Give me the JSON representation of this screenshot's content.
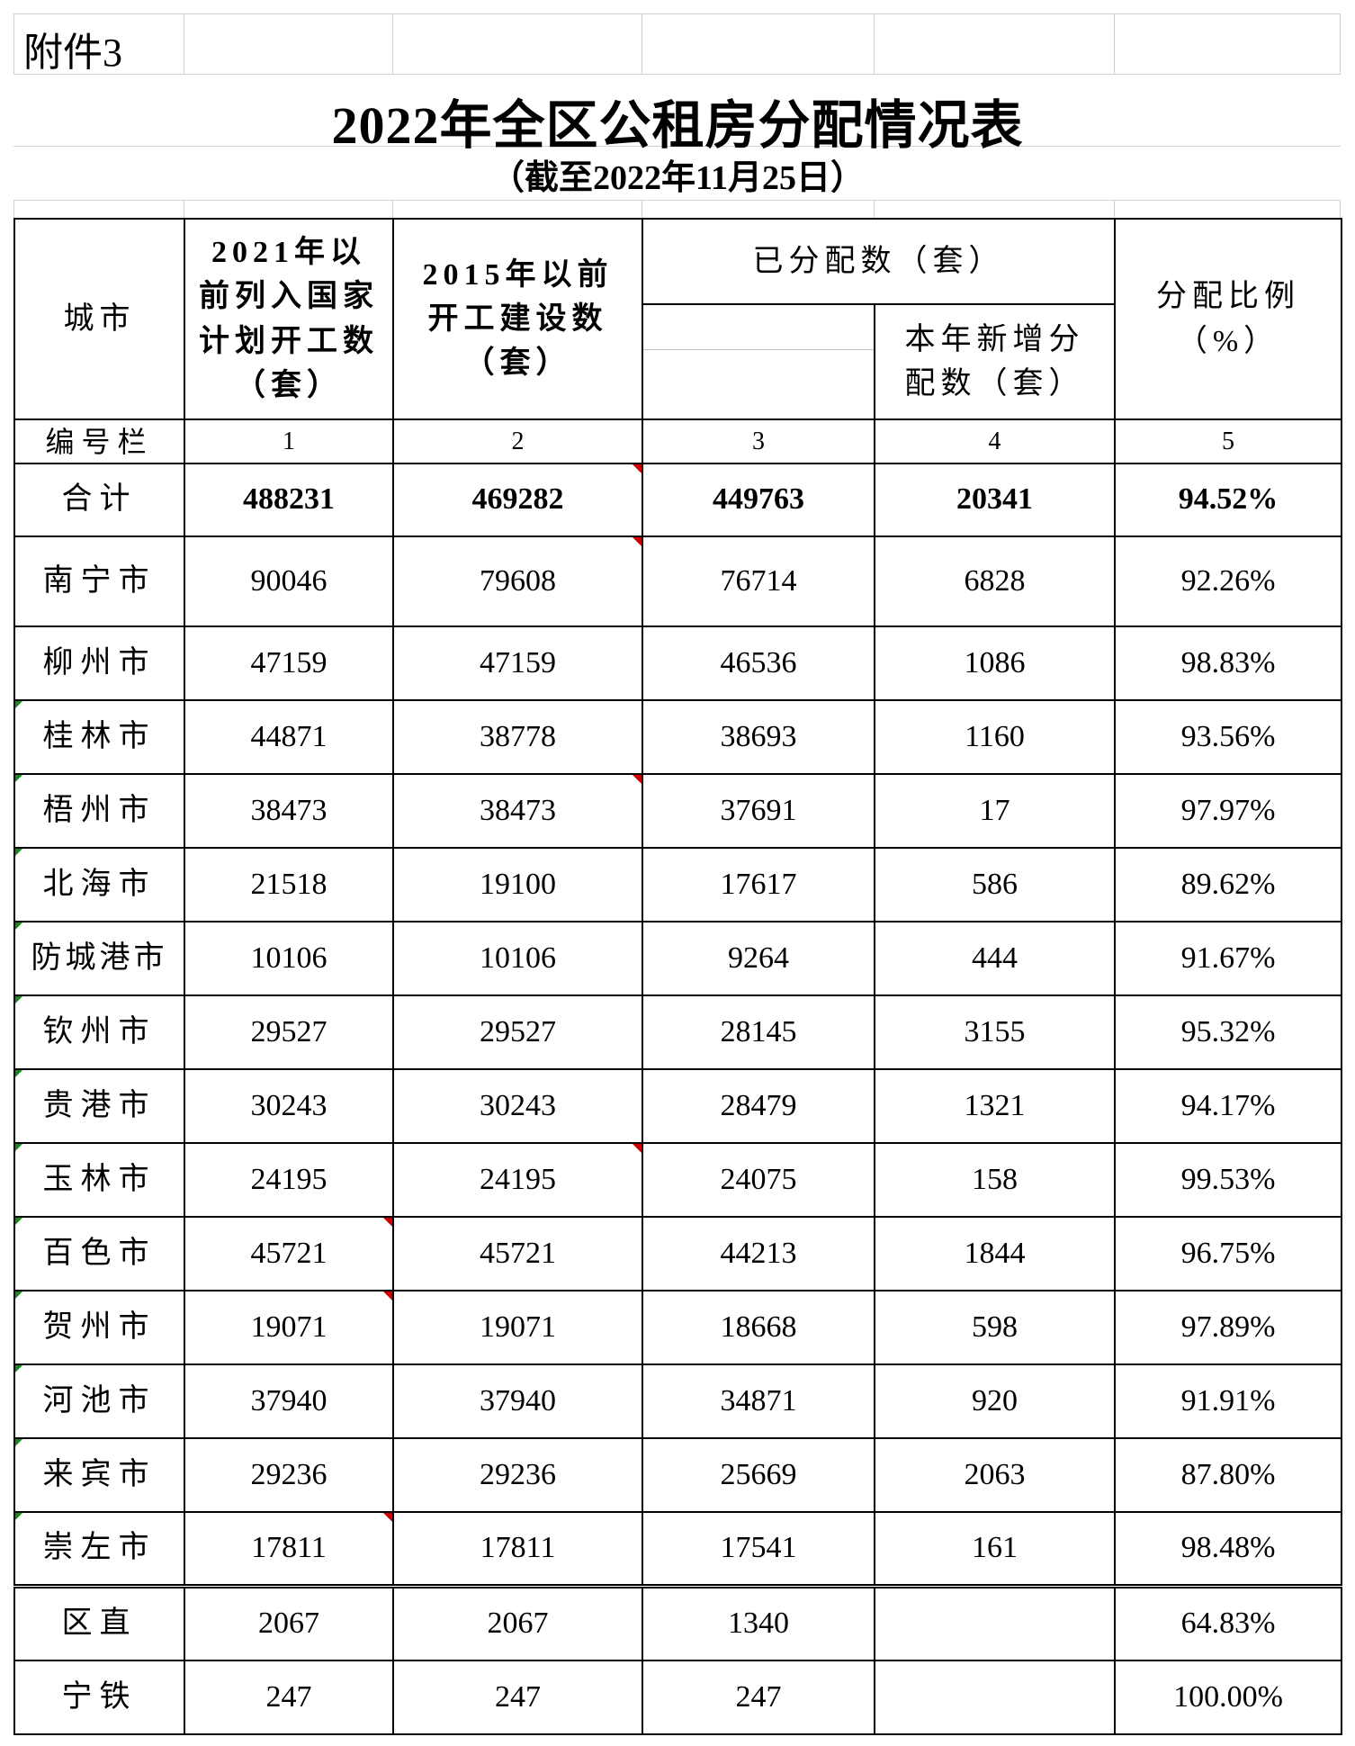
{
  "attachment_label": "附件3",
  "title": "2022年全区公租房分配情况表",
  "subtitle": "（截至2022年11月25日）",
  "header": {
    "city": "城市",
    "col1": "2021年以前列入国家计划开工数（套）",
    "col2": "2015年以前开工建设数（套）",
    "allocated_group": "已分配数（套）",
    "col4": "本年新增分配数（套）",
    "col5": "分配比例（%）"
  },
  "index_row": {
    "label": "编号栏",
    "c1": "1",
    "c2": "2",
    "c3": "3",
    "c4": "4",
    "c5": "5"
  },
  "total_row": {
    "label": "合计",
    "c1": "488231",
    "c2": "469282",
    "c3": "449763",
    "c4": "20341",
    "c5": "94.52%"
  },
  "rows": [
    {
      "city": "南宁市",
      "c1": "90046",
      "c2": "79608",
      "c3": "76714",
      "c4": "6828",
      "c5": "92.26%"
    },
    {
      "city": "柳州市",
      "c1": "47159",
      "c2": "47159",
      "c3": "46536",
      "c4": "1086",
      "c5": "98.83%"
    },
    {
      "city": "桂林市",
      "c1": "44871",
      "c2": "38778",
      "c3": "38693",
      "c4": "1160",
      "c5": "93.56%"
    },
    {
      "city": "梧州市",
      "c1": "38473",
      "c2": "38473",
      "c3": "37691",
      "c4": "17",
      "c5": "97.97%"
    },
    {
      "city": "北海市",
      "c1": "21518",
      "c2": "19100",
      "c3": "17617",
      "c4": "586",
      "c5": "89.62%"
    },
    {
      "city": "防城港市",
      "c1": "10106",
      "c2": "10106",
      "c3": "9264",
      "c4": "444",
      "c5": "91.67%"
    },
    {
      "city": "钦州市",
      "c1": "29527",
      "c2": "29527",
      "c3": "28145",
      "c4": "3155",
      "c5": "95.32%"
    },
    {
      "city": "贵港市",
      "c1": "30243",
      "c2": "30243",
      "c3": "28479",
      "c4": "1321",
      "c5": "94.17%"
    },
    {
      "city": "玉林市",
      "c1": "24195",
      "c2": "24195",
      "c3": "24075",
      "c4": "158",
      "c5": "99.53%"
    },
    {
      "city": "百色市",
      "c1": "45721",
      "c2": "45721",
      "c3": "44213",
      "c4": "1844",
      "c5": "96.75%"
    },
    {
      "city": "贺州市",
      "c1": "19071",
      "c2": "19071",
      "c3": "18668",
      "c4": "598",
      "c5": "97.89%"
    },
    {
      "city": "河池市",
      "c1": "37940",
      "c2": "37940",
      "c3": "34871",
      "c4": "920",
      "c5": "91.91%"
    },
    {
      "city": "来宾市",
      "c1": "29236",
      "c2": "29236",
      "c3": "25669",
      "c4": "2063",
      "c5": "87.80%"
    },
    {
      "city": "崇左市",
      "c1": "17811",
      "c2": "17811",
      "c3": "17541",
      "c4": "161",
      "c5": "98.48%"
    }
  ],
  "extra_rows": [
    {
      "city": "区直",
      "c1": "2067",
      "c2": "2067",
      "c3": "1340",
      "c4": "",
      "c5": "64.83%"
    },
    {
      "city": "宁铁",
      "c1": "247",
      "c2": "247",
      "c3": "247",
      "c4": "",
      "c5": "100.00%"
    }
  ]
}
